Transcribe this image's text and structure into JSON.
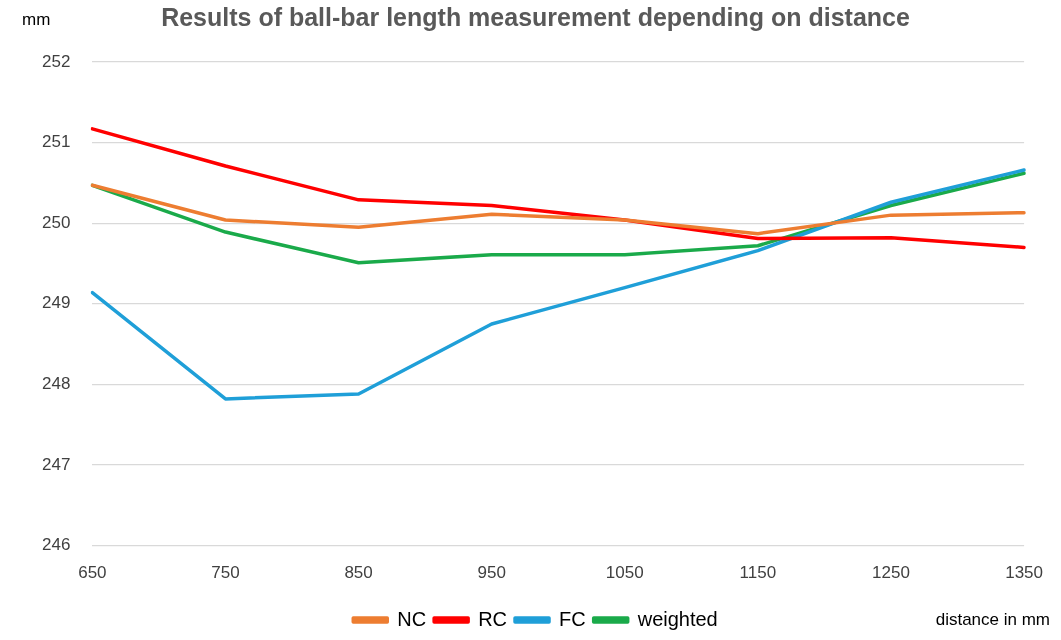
{
  "chart_data": {
    "type": "line",
    "title": "Results of ball-bar length measurement depending on distance",
    "xlabel": "distance in mm",
    "ylabel": "mm",
    "categories": [
      "650",
      "750",
      "850",
      "950",
      "1050",
      "1150",
      "1250",
      "1350"
    ],
    "series": [
      {
        "name": "NC",
        "color": "#ed7d31",
        "values": [
          250.47,
          250.04,
          249.95,
          250.11,
          250.04,
          249.87,
          250.1,
          250.13
        ]
      },
      {
        "name": "RC",
        "color": "#ff0000",
        "values": [
          251.17,
          250.71,
          250.29,
          250.22,
          250.04,
          249.81,
          249.82,
          249.7
        ]
      },
      {
        "name": "FC",
        "color": "#1f9fd8",
        "values": [
          249.14,
          247.82,
          247.88,
          248.75,
          249.2,
          249.66,
          250.26,
          250.66
        ]
      },
      {
        "name": "weighted",
        "color": "#1aaa4a",
        "values": [
          250.47,
          249.89,
          249.51,
          249.61,
          249.61,
          249.72,
          250.22,
          250.62
        ]
      }
    ],
    "ylim": [
      246,
      252
    ],
    "yticks": [
      246,
      247,
      248,
      249,
      250,
      251,
      252
    ],
    "grid": "y",
    "legend": "bottom",
    "marker": "none",
    "line_style": "solid"
  }
}
